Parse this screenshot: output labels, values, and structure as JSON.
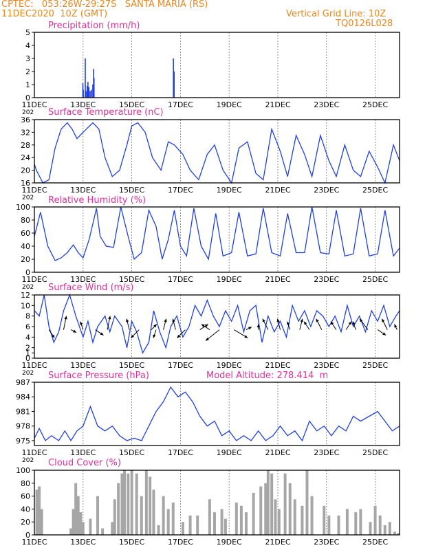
{
  "header": {
    "line1": "CPTEC:   053:26W-29:27S   SANTA MARIA (RS)",
    "line2": "11DEC2020  10Z (GMT)",
    "grid_note": "Vertical Grid Line: 10Z",
    "code": "TQ0126L028"
  },
  "model_altitude_label": "Model Altitude: 278.414  m",
  "x_labels": [
    "11DEC",
    "13DEC",
    "15DEC",
    "17DEC",
    "19DEC",
    "21DEC",
    "23DEC",
    "25DEC"
  ],
  "x_cut_label": "202",
  "colors": {
    "header": "#e8871e",
    "title": "#e0309a",
    "line": "#1f3fe6",
    "cloud": "#a6a6a6",
    "grid": "#555555"
  },
  "chart_data": [
    {
      "type": "bar",
      "title": "Precipitation (mm/h)",
      "ylim": [
        0,
        5
      ],
      "yticks": [
        0,
        1,
        2,
        3,
        4,
        5
      ],
      "x_day_range": [
        0,
        15
      ],
      "bars": [
        [
          1.99,
          1.1
        ],
        [
          2.01,
          0.6
        ],
        [
          2.09,
          3.0
        ],
        [
          2.12,
          0.5
        ],
        [
          2.17,
          0.9
        ],
        [
          2.2,
          1.2
        ],
        [
          2.24,
          0.8
        ],
        [
          2.29,
          0.5
        ],
        [
          2.35,
          0.6
        ],
        [
          2.4,
          1.0
        ],
        [
          2.43,
          2.2
        ],
        [
          2.45,
          1.5
        ],
        [
          5.71,
          3.0
        ],
        [
          5.74,
          2.0
        ]
      ]
    },
    {
      "type": "line",
      "title": "Surface Temperature (nC)",
      "ylim": [
        16,
        36
      ],
      "yticks": [
        16,
        20,
        24,
        28,
        32,
        36
      ],
      "x_day_range": [
        0,
        15
      ],
      "x": [
        0,
        0.08,
        0.35,
        0.6,
        0.85,
        1.1,
        1.35,
        1.55,
        1.75,
        2.0,
        2.4,
        2.65,
        2.9,
        3.2,
        3.5,
        3.8,
        4.0,
        4.25,
        4.55,
        4.85,
        5.2,
        5.5,
        5.75,
        6.1,
        6.4,
        6.75,
        7.1,
        7.4,
        7.75,
        8.1,
        8.4,
        8.75,
        9.1,
        9.4,
        9.75,
        10.1,
        10.4,
        10.75,
        11.1,
        11.4,
        11.75,
        12.1,
        12.4,
        12.75,
        13.1,
        13.4,
        13.75,
        14.1,
        14.4,
        14.75,
        15.0
      ],
      "y": [
        22,
        20,
        16,
        17,
        27,
        33,
        35,
        33,
        30,
        32,
        35,
        33,
        24,
        18,
        20,
        28,
        34,
        35,
        32,
        24,
        20,
        29,
        28,
        25,
        20,
        17,
        25,
        28,
        20,
        16,
        27,
        29,
        19,
        17,
        33,
        26,
        18,
        31,
        25,
        18,
        31,
        23,
        18,
        28,
        20,
        18,
        26,
        21,
        16,
        28,
        23
      ]
    },
    {
      "type": "line",
      "title": "Relative Humidity (%)",
      "ylim": [
        0,
        100
      ],
      "yticks": [
        0,
        20,
        40,
        60,
        80,
        100
      ],
      "x_day_range": [
        0,
        15
      ],
      "x": [
        0,
        0.25,
        0.55,
        0.85,
        1.1,
        1.35,
        1.6,
        1.8,
        2.0,
        2.25,
        2.55,
        2.7,
        2.95,
        3.25,
        3.55,
        3.85,
        4.1,
        4.4,
        4.7,
        5.0,
        5.25,
        5.5,
        5.75,
        6.0,
        6.25,
        6.55,
        6.85,
        7.15,
        7.45,
        7.75,
        8.1,
        8.4,
        8.75,
        9.1,
        9.4,
        9.75,
        10.1,
        10.4,
        10.75,
        11.1,
        11.4,
        11.75,
        12.1,
        12.4,
        12.75,
        13.1,
        13.4,
        13.75,
        14.1,
        14.4,
        14.75,
        15.0
      ],
      "y": [
        55,
        92,
        40,
        18,
        22,
        30,
        42,
        30,
        22,
        50,
        98,
        55,
        40,
        38,
        100,
        55,
        20,
        30,
        95,
        70,
        20,
        50,
        95,
        40,
        25,
        98,
        40,
        20,
        90,
        25,
        30,
        92,
        25,
        28,
        98,
        30,
        25,
        90,
        30,
        30,
        100,
        30,
        28,
        95,
        25,
        28,
        98,
        25,
        28,
        95,
        25,
        37
      ]
    },
    {
      "type": "line",
      "title": "Surface Wind (m/s)",
      "ylim": [
        0,
        12
      ],
      "yticks": [
        0,
        1,
        2,
        4,
        6,
        8,
        10,
        12
      ],
      "x_day_range": [
        0,
        15
      ],
      "x": [
        0,
        0.2,
        0.4,
        0.6,
        0.8,
        1.0,
        1.2,
        1.45,
        1.7,
        2.0,
        2.2,
        2.4,
        2.6,
        2.9,
        3.1,
        3.3,
        3.6,
        3.8,
        4.0,
        4.2,
        4.45,
        4.7,
        4.9,
        5.15,
        5.4,
        5.6,
        5.85,
        6.1,
        6.35,
        6.6,
        6.85,
        7.1,
        7.35,
        7.6,
        7.85,
        8.1,
        8.35,
        8.6,
        8.85,
        9.1,
        9.35,
        9.6,
        9.85,
        10.1,
        10.35,
        10.6,
        10.85,
        11.1,
        11.35,
        11.6,
        11.85,
        12.1,
        12.35,
        12.6,
        12.85,
        13.1,
        13.35,
        13.6,
        13.85,
        14.1,
        14.35,
        14.6,
        14.85,
        15.0
      ],
      "y": [
        9,
        8,
        12,
        6,
        3,
        5,
        9,
        12,
        8,
        4,
        7,
        3,
        6,
        8,
        5,
        8,
        6,
        2,
        7,
        5,
        1,
        3,
        9,
        5,
        2,
        6,
        8,
        4,
        6,
        10,
        8,
        11,
        8,
        6,
        9,
        7,
        10,
        5,
        9,
        10,
        3,
        8,
        5,
        7,
        4,
        10,
        7,
        9,
        6,
        9,
        8,
        6,
        8,
        5,
        10,
        6,
        8,
        5,
        9,
        7,
        10,
        6,
        8,
        9
      ],
      "vectors": [
        [
          0.6,
          2,
          -3
        ],
        [
          1.2,
          1,
          5
        ],
        [
          1.5,
          2,
          -1
        ],
        [
          2.0,
          -1,
          3
        ],
        [
          2.5,
          3,
          -2
        ],
        [
          3.0,
          1,
          5
        ],
        [
          3.9,
          -1,
          4
        ],
        [
          4.3,
          -3,
          -3
        ],
        [
          4.8,
          2,
          2
        ],
        [
          5.0,
          -1,
          -3
        ],
        [
          5.3,
          1,
          4
        ],
        [
          5.8,
          -1,
          4
        ],
        [
          6.2,
          -3,
          -3
        ],
        [
          6.8,
          3,
          2
        ],
        [
          7.2,
          -3,
          2
        ],
        [
          7.6,
          -5,
          -4
        ],
        [
          8.2,
          5,
          -3
        ],
        [
          8.7,
          2,
          1
        ],
        [
          9.2,
          0,
          2
        ],
        [
          9.6,
          -2,
          4
        ],
        [
          10.1,
          -1,
          4
        ],
        [
          10.5,
          -1,
          3
        ],
        [
          10.9,
          1,
          4
        ],
        [
          11.3,
          -2,
          3
        ],
        [
          11.8,
          -2,
          4
        ],
        [
          12.4,
          -2,
          3
        ],
        [
          12.8,
          2,
          3
        ],
        [
          13.2,
          -1,
          3
        ],
        [
          13.7,
          -3,
          4
        ],
        [
          14.1,
          3,
          -2
        ],
        [
          14.5,
          -2,
          4
        ],
        [
          14.9,
          -1,
          2
        ]
      ]
    },
    {
      "type": "line",
      "title": "Surface Pressure (hPa)",
      "ylim": [
        974,
        987
      ],
      "yticks": [
        975,
        978,
        981,
        984,
        987
      ],
      "x_day_range": [
        0,
        15
      ],
      "x": [
        0,
        0.2,
        0.45,
        0.7,
        1.0,
        1.25,
        1.5,
        1.75,
        2.0,
        2.3,
        2.6,
        2.9,
        3.2,
        3.5,
        3.8,
        4.1,
        4.4,
        4.7,
        5.0,
        5.3,
        5.6,
        5.9,
        6.2,
        6.5,
        6.8,
        7.1,
        7.4,
        7.7,
        8.0,
        8.3,
        8.6,
        8.9,
        9.2,
        9.5,
        9.8,
        10.1,
        10.4,
        10.7,
        11.0,
        11.3,
        11.6,
        11.9,
        12.2,
        12.5,
        12.8,
        13.1,
        13.4,
        13.75,
        14.1,
        14.4,
        14.7,
        15.0
      ],
      "y": [
        975.5,
        977.5,
        975,
        976,
        975,
        977,
        975,
        977,
        978,
        982,
        978,
        977,
        978,
        976,
        975,
        975.5,
        975,
        978,
        981,
        983,
        986,
        984,
        985,
        983,
        980,
        978,
        979,
        976,
        977,
        975,
        976,
        975,
        977,
        975,
        976,
        978,
        976,
        977,
        975,
        979,
        977,
        978,
        976,
        978,
        977,
        980,
        979,
        980,
        981,
        979,
        977,
        978
      ]
    },
    {
      "type": "bar",
      "title": "Cloud Cover (%)",
      "ylim": [
        0,
        100
      ],
      "yticks": [
        0,
        20,
        40,
        60,
        80,
        100
      ],
      "x_day_range": [
        0,
        15
      ],
      "bars": [
        [
          0.1,
          70
        ],
        [
          0.2,
          75
        ],
        [
          0.3,
          40
        ],
        [
          1.5,
          10
        ],
        [
          1.6,
          40
        ],
        [
          1.7,
          80
        ],
        [
          1.8,
          60
        ],
        [
          1.9,
          35
        ],
        [
          2.0,
          20
        ],
        [
          2.3,
          25
        ],
        [
          2.6,
          60
        ],
        [
          2.8,
          10
        ],
        [
          3.2,
          20
        ],
        [
          3.3,
          55
        ],
        [
          3.45,
          80
        ],
        [
          3.6,
          95
        ],
        [
          3.7,
          100
        ],
        [
          3.85,
          95
        ],
        [
          4.0,
          100
        ],
        [
          4.2,
          95
        ],
        [
          4.4,
          60
        ],
        [
          4.6,
          100
        ],
        [
          4.75,
          90
        ],
        [
          4.9,
          70
        ],
        [
          5.1,
          15
        ],
        [
          5.3,
          60
        ],
        [
          5.5,
          40
        ],
        [
          5.7,
          50
        ],
        [
          6.1,
          20
        ],
        [
          6.4,
          30
        ],
        [
          6.7,
          30
        ],
        [
          7.2,
          55
        ],
        [
          7.4,
          35
        ],
        [
          7.7,
          40
        ],
        [
          7.85,
          25
        ],
        [
          8.3,
          50
        ],
        [
          8.5,
          45
        ],
        [
          8.7,
          35
        ],
        [
          9.0,
          65
        ],
        [
          9.3,
          75
        ],
        [
          9.5,
          80
        ],
        [
          9.6,
          100
        ],
        [
          9.75,
          95
        ],
        [
          9.9,
          55
        ],
        [
          10.05,
          40
        ],
        [
          10.3,
          95
        ],
        [
          10.5,
          80
        ],
        [
          10.7,
          55
        ],
        [
          11.0,
          45
        ],
        [
          11.2,
          100
        ],
        [
          11.4,
          60
        ],
        [
          11.9,
          45
        ],
        [
          12.1,
          30
        ],
        [
          12.5,
          30
        ],
        [
          12.85,
          40
        ],
        [
          13.2,
          35
        ],
        [
          13.4,
          40
        ],
        [
          13.8,
          20
        ],
        [
          14.0,
          45
        ],
        [
          14.2,
          30
        ],
        [
          14.4,
          15
        ],
        [
          14.6,
          20
        ],
        [
          14.8,
          5
        ],
        [
          14.95,
          3
        ]
      ]
    }
  ]
}
